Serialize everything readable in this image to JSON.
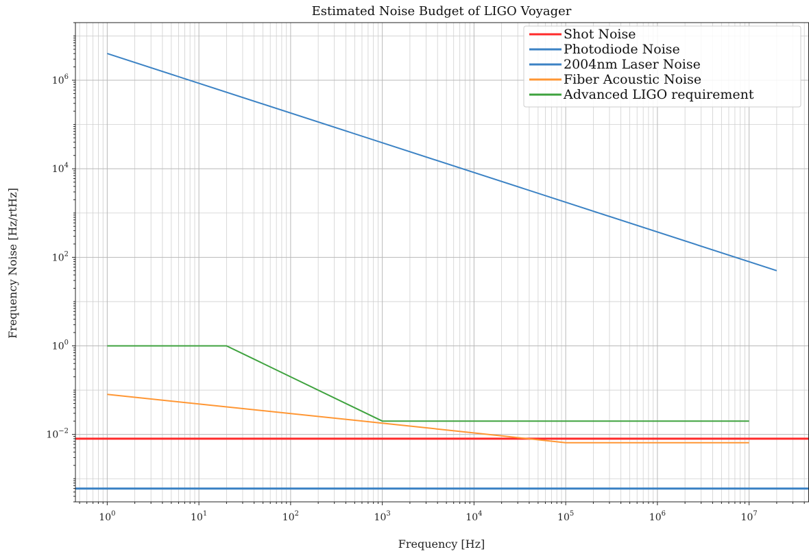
{
  "chart_data": {
    "type": "line",
    "title": "Estimated Noise Budget of LIGO Voyager",
    "xlabel": "Frequency [Hz]",
    "ylabel": "Frequency Noise [Hz/rtHz]",
    "xscale": "log",
    "yscale": "log",
    "xlim": [
      0.45,
      45000000
    ],
    "ylim": [
      0.0003,
      20000000
    ],
    "grid": "both-major-minor",
    "legend_position": "top-right",
    "x_ticks": [
      {
        "base": "10",
        "exp": "0",
        "value": 1
      },
      {
        "base": "10",
        "exp": "1",
        "value": 10
      },
      {
        "base": "10",
        "exp": "2",
        "value": 100
      },
      {
        "base": "10",
        "exp": "3",
        "value": 1000
      },
      {
        "base": "10",
        "exp": "4",
        "value": 10000
      },
      {
        "base": "10",
        "exp": "5",
        "value": 100000
      },
      {
        "base": "10",
        "exp": "6",
        "value": 1000000
      },
      {
        "base": "10",
        "exp": "7",
        "value": 10000000
      }
    ],
    "y_ticks": [
      {
        "base": "10",
        "exp": "−2",
        "value": 0.01
      },
      {
        "base": "10",
        "exp": "0",
        "value": 1
      },
      {
        "base": "10",
        "exp": "2",
        "value": 100
      },
      {
        "base": "10",
        "exp": "4",
        "value": 10000
      },
      {
        "base": "10",
        "exp": "6",
        "value": 1000000
      }
    ],
    "series": [
      {
        "name": "Shot Noise",
        "color": "#ff2a2a",
        "width": 3,
        "x": [
          0.45,
          45000000
        ],
        "y": [
          0.008,
          0.008
        ]
      },
      {
        "name": "Photodiode Noise",
        "color": "#3b82c4",
        "width": 3,
        "x": [
          0.45,
          45000000
        ],
        "y": [
          0.0006,
          0.0006
        ]
      },
      {
        "name": "2004nm Laser Noise",
        "color": "#3b82c4",
        "width": 2,
        "x": [
          1,
          20000000
        ],
        "y": [
          4000000,
          50
        ]
      },
      {
        "name": "Fiber Acoustic Noise",
        "color": "#ff9633",
        "width": 2,
        "x": [
          1,
          1000,
          100000,
          10000000
        ],
        "y": [
          0.08,
          0.018,
          0.0065,
          0.0065
        ]
      },
      {
        "name": "Advanced LIGO requirement",
        "color": "#3ea23e",
        "width": 2,
        "x": [
          1,
          20,
          1000,
          10000000
        ],
        "y": [
          1,
          1,
          0.02,
          0.02
        ]
      }
    ]
  }
}
